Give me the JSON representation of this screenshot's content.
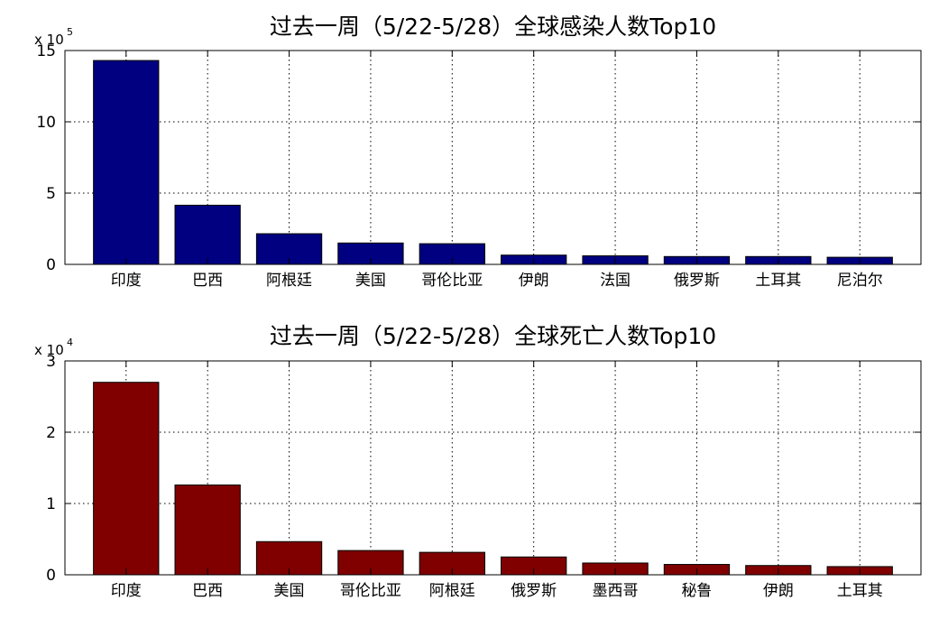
{
  "chart_data": [
    {
      "type": "bar",
      "title": "过去一周（5/22-5/28）全球感染人数Top10",
      "categories": [
        "印度",
        "巴西",
        "阿根廷",
        "美国",
        "哥伦比亚",
        "伊朗",
        "法国",
        "俄罗斯",
        "土耳其",
        "尼泊尔"
      ],
      "values": [
        1430000,
        415000,
        215000,
        150000,
        145000,
        65000,
        60000,
        55000,
        55000,
        50000
      ],
      "ylim": [
        0,
        1500000
      ],
      "yticks": [
        0,
        500000,
        1000000,
        1500000
      ],
      "ytick_labels": [
        "0",
        "5",
        "10",
        "15"
      ],
      "multiplier_base": "x 10",
      "multiplier_exp": "5",
      "xlabel": "",
      "ylabel": "",
      "grid": true,
      "color": "#000080"
    },
    {
      "type": "bar",
      "title": "过去一周（5/22-5/28）全球死亡人数Top10",
      "categories": [
        "印度",
        "巴西",
        "美国",
        "哥伦比亚",
        "阿根廷",
        "俄罗斯",
        "墨西哥",
        "秘鲁",
        "伊朗",
        "土耳其"
      ],
      "values": [
        27000,
        12600,
        4650,
        3400,
        3150,
        2500,
        1650,
        1450,
        1300,
        1150
      ],
      "ylim": [
        0,
        30000
      ],
      "yticks": [
        0,
        10000,
        20000,
        30000
      ],
      "ytick_labels": [
        "0",
        "1",
        "2",
        "3"
      ],
      "multiplier_base": "x 10",
      "multiplier_exp": "4",
      "xlabel": "",
      "ylabel": "",
      "grid": true,
      "color": "#800000"
    }
  ]
}
